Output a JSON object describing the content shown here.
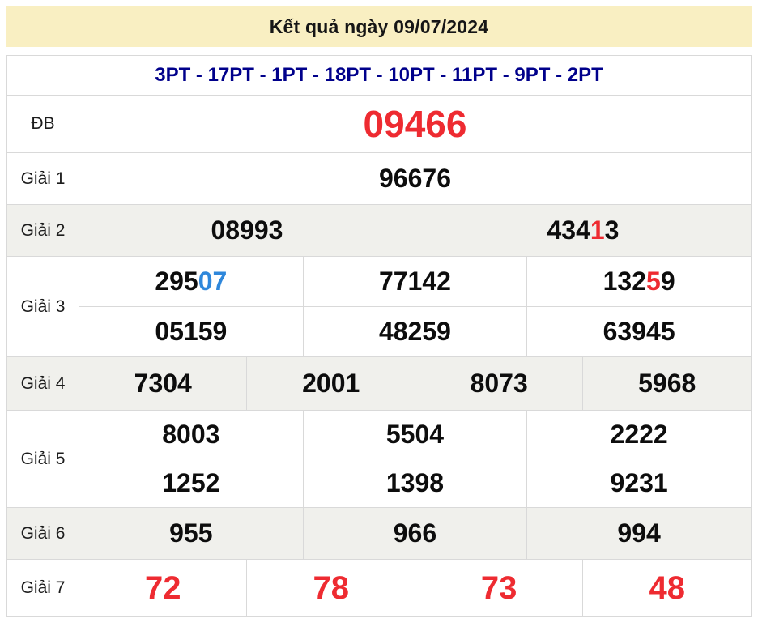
{
  "header": {
    "title": "Kết quả ngày 09/07/2024"
  },
  "summary": {
    "text": "3PT - 17PT - 1PT - 18PT - 10PT - 11PT - 9PT - 2PT"
  },
  "colors": {
    "accent_red": "#ee2b31",
    "accent_blue": "#2e87db",
    "navy": "#00008b",
    "header_bg": "#f9efc2",
    "row_alt_bg": "#f0f0ec"
  },
  "prizes": {
    "db": {
      "label": "ĐB",
      "value": "09466"
    },
    "g1": {
      "label": "Giải 1",
      "value": "96676"
    },
    "g2": {
      "label": "Giải 2",
      "v1": "08993",
      "v2_pre": "434",
      "v2_hl": "1",
      "v2_post": "3"
    },
    "g3": {
      "label": "Giải 3",
      "r1c1_pre": "295",
      "r1c1_hl": "07",
      "r1c2": "77142",
      "r1c3_pre": "132",
      "r1c3_hl": "5",
      "r1c3_post": "9",
      "r2c1": "05159",
      "r2c2": "48259",
      "r2c3": "63945"
    },
    "g4": {
      "label": "Giải 4",
      "v1": "7304",
      "v2": "2001",
      "v3": "8073",
      "v4": "5968"
    },
    "g5": {
      "label": "Giải 5",
      "r1c1": "8003",
      "r1c2": "5504",
      "r1c3": "2222",
      "r2c1": "1252",
      "r2c2": "1398",
      "r2c3": "9231"
    },
    "g6": {
      "label": "Giải 6",
      "v1": "955",
      "v2": "966",
      "v3": "994"
    },
    "g7": {
      "label": "Giải 7",
      "v1": "72",
      "v2": "78",
      "v3": "73",
      "v4": "48"
    }
  }
}
